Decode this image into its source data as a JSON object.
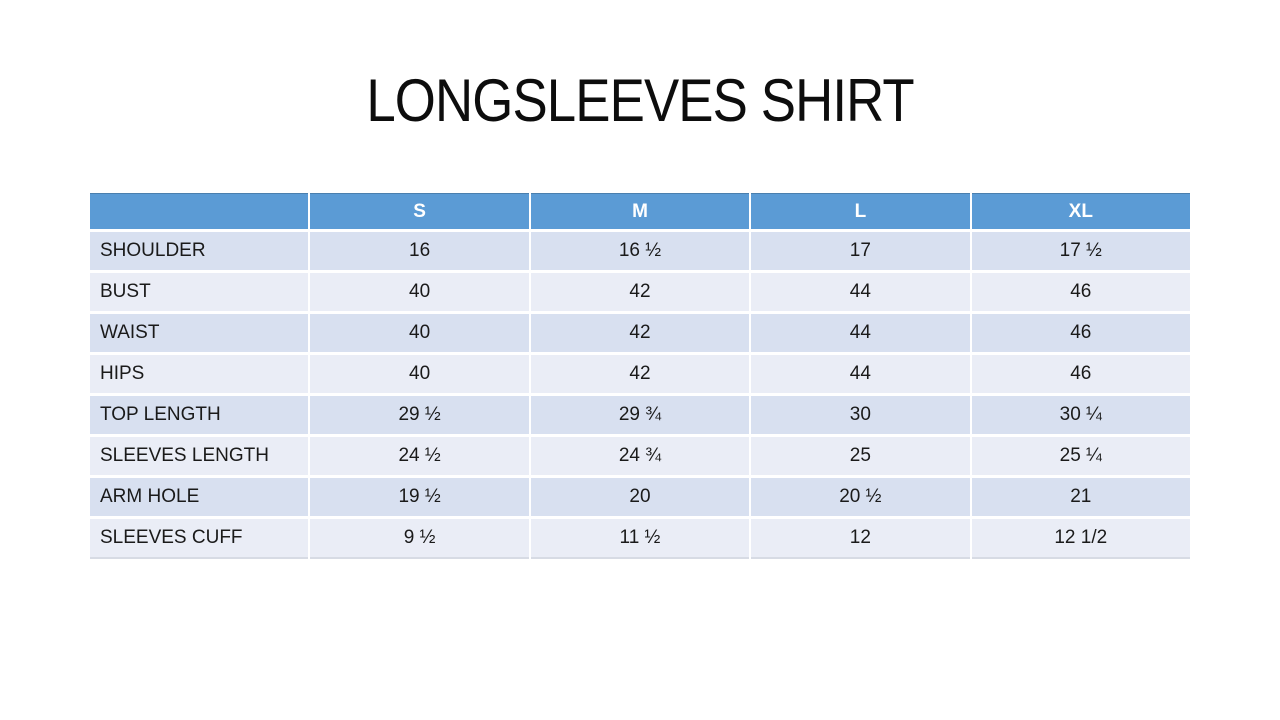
{
  "title": "LONGSLEEVES SHIRT",
  "table": {
    "columns": [
      "",
      "S",
      "M",
      "L",
      "XL"
    ],
    "rows": [
      {
        "label": "SHOULDER",
        "values": [
          "16",
          "16 ½",
          "17",
          "17 ½"
        ]
      },
      {
        "label": "BUST",
        "values": [
          "40",
          "42",
          "44",
          "46"
        ]
      },
      {
        "label": "WAIST",
        "values": [
          "40",
          "42",
          "44",
          "46"
        ]
      },
      {
        "label": "HIPS",
        "values": [
          "40",
          "42",
          "44",
          "46"
        ]
      },
      {
        "label": "TOP LENGTH",
        "values": [
          "29 ½",
          "29 ¾",
          "30",
          "30 ¼"
        ]
      },
      {
        "label": "SLEEVES LENGTH",
        "values": [
          "24 ½",
          "24 ¾",
          "25",
          "25 ¼"
        ]
      },
      {
        "label": "ARM HOLE",
        "values": [
          "19 ½",
          "20",
          "20 ½",
          "21"
        ]
      },
      {
        "label": "SLEEVES CUFF",
        "values": [
          "9 ½",
          "11 ½",
          "12",
          "12 1/2"
        ]
      }
    ],
    "colors": {
      "header_bg": "#5B9BD5",
      "header_text": "#FFFFFF",
      "row_band_dark": "#D8E0F0",
      "row_band_light": "#EAEDF6",
      "body_text": "#1A1A1A",
      "gap": "#FFFFFF"
    }
  }
}
